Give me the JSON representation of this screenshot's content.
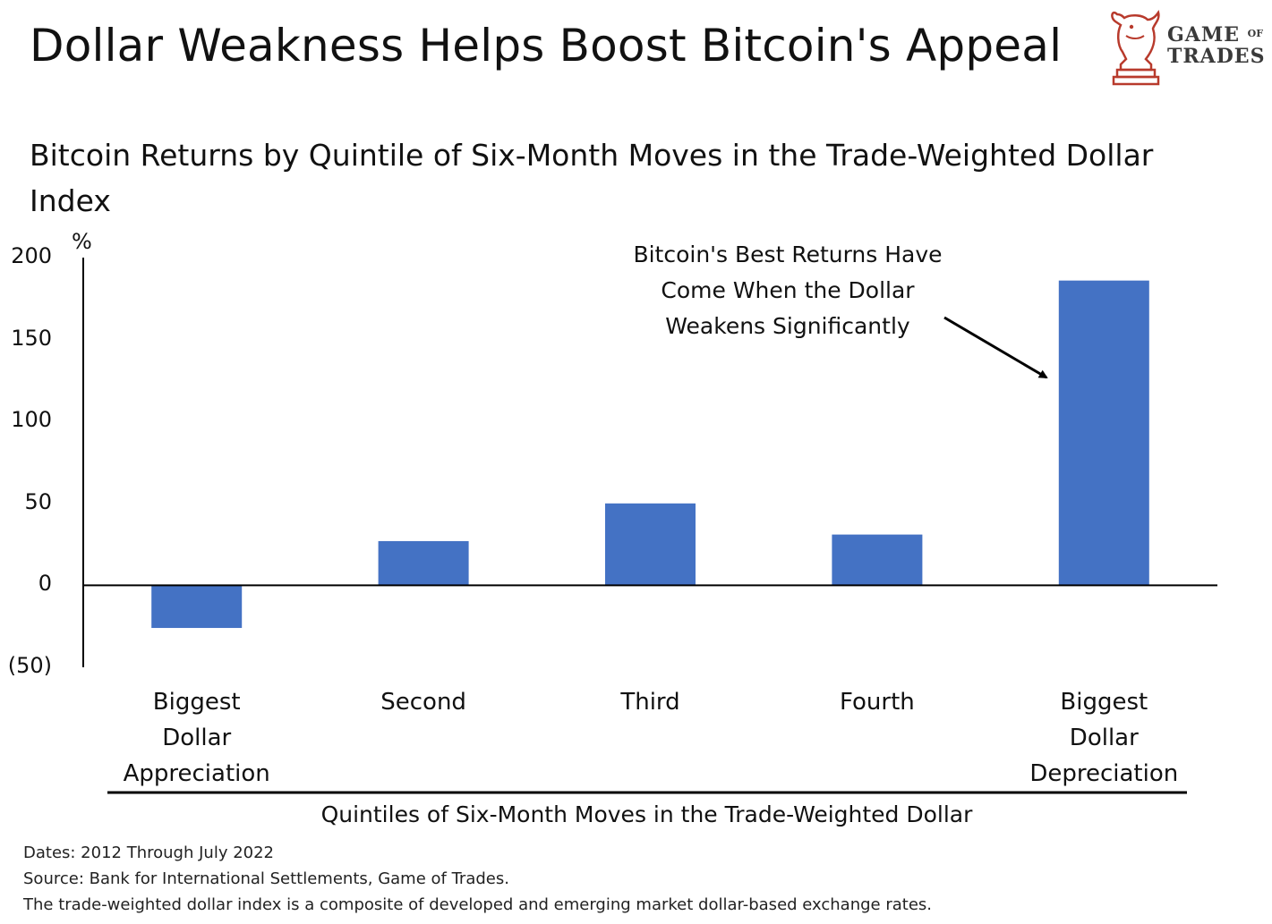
{
  "title": "Dollar Weakness Helps Boost Bitcoin's Appeal",
  "logo": {
    "line1": "GAME",
    "line1_small": "OF",
    "line2": "TRADES"
  },
  "chart_data": {
    "type": "bar",
    "subtitle": "Bitcoin Returns by Quintile of Six-Month Moves in the Trade-Weighted Dollar Index",
    "unit_label": "%",
    "categories": [
      "Biggest Dollar Appreciation",
      "Second",
      "Third",
      "Fourth",
      "Biggest Dollar Depreciation"
    ],
    "values": [
      -26,
      27,
      50,
      31,
      186
    ],
    "ylim": [
      -50,
      200
    ],
    "yticks": [
      200,
      150,
      100,
      50,
      0,
      -50
    ],
    "ytick_labels": [
      "200",
      "150",
      "100",
      "50",
      "0",
      "(50)"
    ],
    "xlabel": "Quintiles of Six-Month Moves in the Trade-Weighted Dollar",
    "bar_color": "#4472C4",
    "grid": false,
    "annotation": {
      "lines": [
        "Bitcoin's Best Returns Have",
        "Come When the Dollar",
        "Weakens Significantly"
      ],
      "points_to": "Biggest Dollar Depreciation"
    }
  },
  "footnotes": [
    "Dates: 2012 Through July 2022",
    "Source: Bank for International Settlements, Game of Trades.",
    "The trade-weighted dollar index is a composite of developed and emerging market dollar-based exchange rates."
  ]
}
